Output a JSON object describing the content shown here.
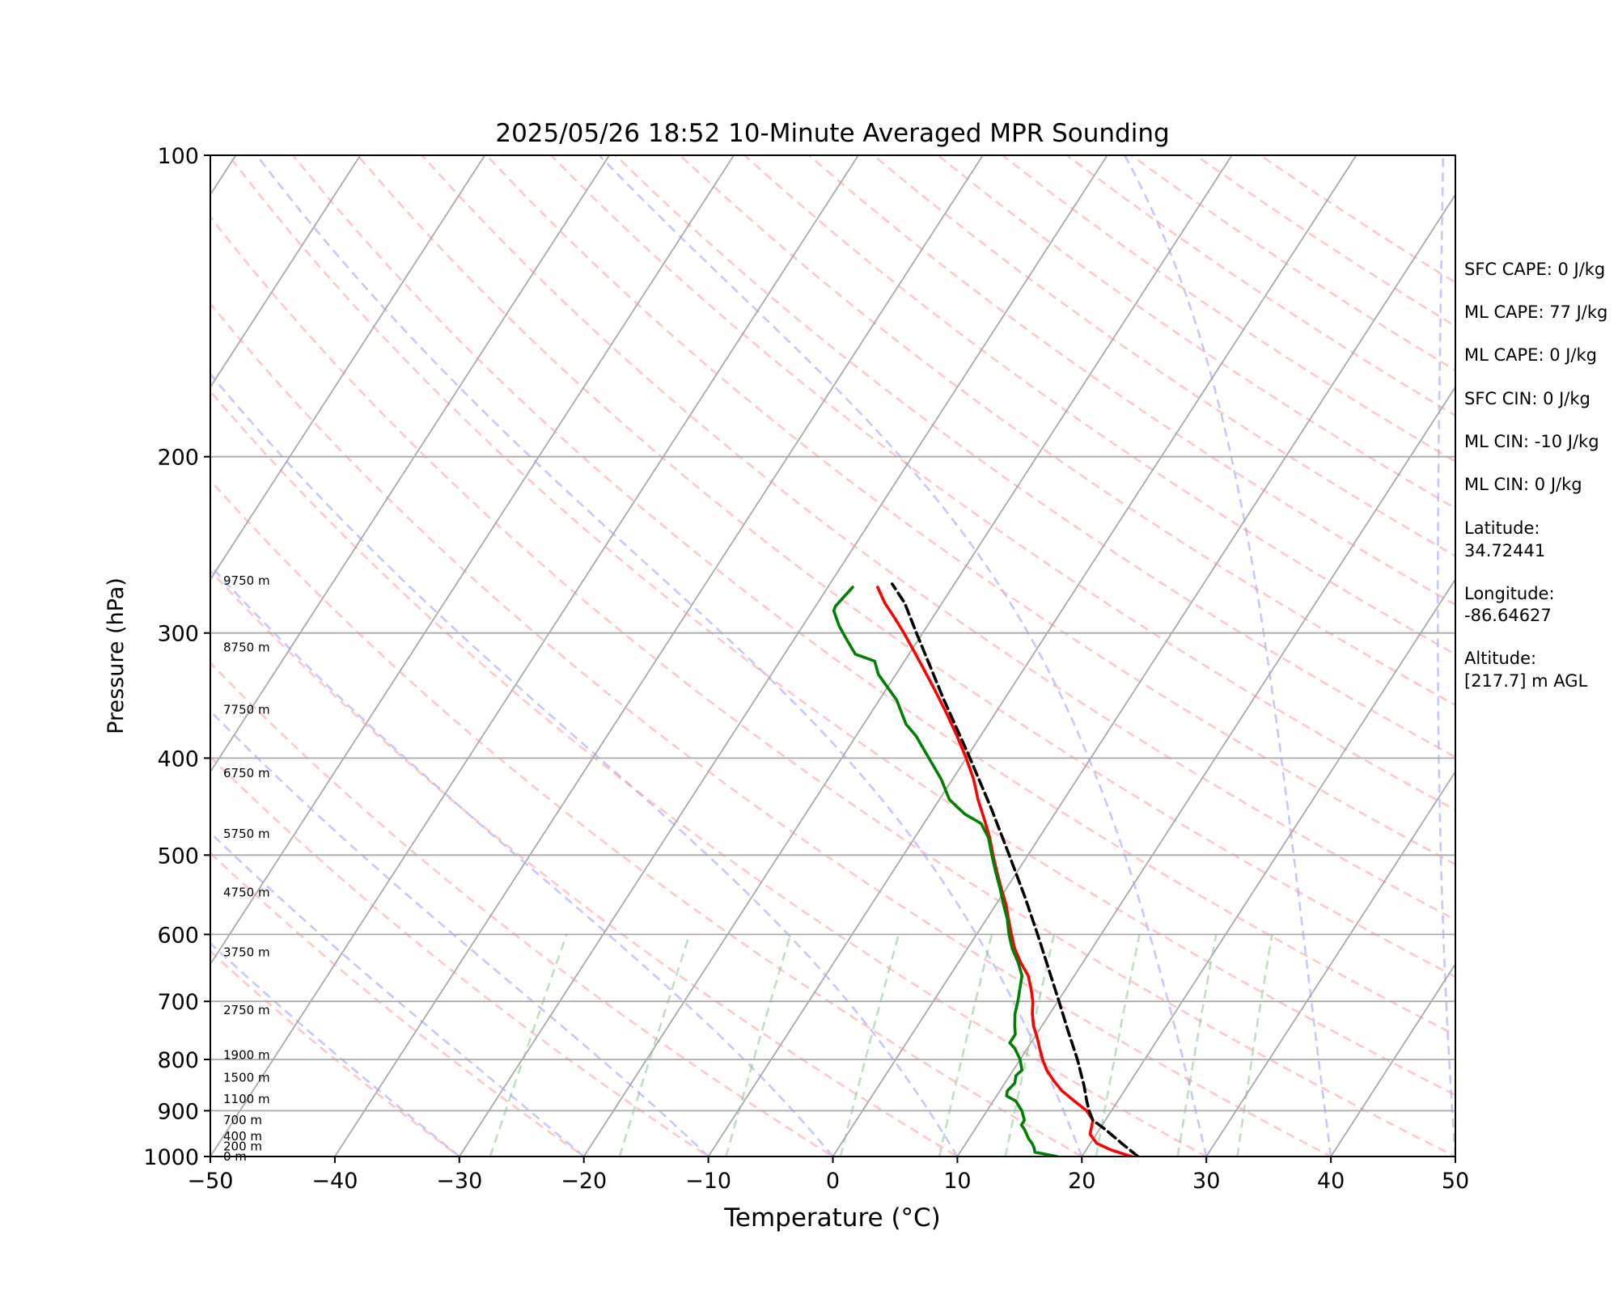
{
  "chart_data": {
    "type": "line",
    "title": "2025/05/26 18:52 10-Minute Averaged MPR Sounding",
    "xlabel": "Temperature (°C)",
    "ylabel": "Pressure (hPa)",
    "xlim": [
      -50,
      50
    ],
    "ylim": [
      1000,
      100
    ],
    "y_scale": "log",
    "x_ticks": [
      "−50",
      "−40",
      "−30",
      "−20",
      "−10",
      "0",
      "10",
      "20",
      "30",
      "40",
      "50"
    ],
    "x_tick_values": [
      -50,
      -40,
      -30,
      -20,
      -10,
      0,
      10,
      20,
      30,
      40,
      50
    ],
    "y_ticks": [
      "100",
      "200",
      "300",
      "400",
      "500",
      "600",
      "700",
      "800",
      "900",
      "1000"
    ],
    "y_tick_values": [
      100,
      200,
      300,
      400,
      500,
      600,
      700,
      800,
      900,
      1000
    ],
    "grid": true,
    "height_labels": [
      {
        "p": 1000,
        "text": "0 m"
      },
      {
        "p": 977,
        "text": "200 m"
      },
      {
        "p": 955,
        "text": "400 m"
      },
      {
        "p": 920,
        "text": "700 m"
      },
      {
        "p": 876,
        "text": "1100 m"
      },
      {
        "p": 834,
        "text": "1500 m"
      },
      {
        "p": 792,
        "text": "1900 m"
      },
      {
        "p": 714,
        "text": "2750 m"
      },
      {
        "p": 625,
        "text": "3750 m"
      },
      {
        "p": 545,
        "text": "4750 m"
      },
      {
        "p": 476,
        "text": "5750 m"
      },
      {
        "p": 414,
        "text": "6750 m"
      },
      {
        "p": 358,
        "text": "7750 m"
      },
      {
        "p": 310,
        "text": "8750 m"
      },
      {
        "p": 266,
        "text": "9750 m"
      }
    ],
    "series": [
      {
        "color": "#ff0000",
        "points": [
          [
            1000,
            24.0
          ],
          [
            985,
            22.0
          ],
          [
            970,
            20.5
          ],
          [
            950,
            19.5
          ],
          [
            920,
            19.0
          ],
          [
            900,
            18.0
          ],
          [
            880,
            16.5
          ],
          [
            860,
            15.0
          ],
          [
            840,
            13.8
          ],
          [
            820,
            12.7
          ],
          [
            800,
            11.8
          ],
          [
            780,
            11.0
          ],
          [
            760,
            10.2
          ],
          [
            740,
            9.3
          ],
          [
            720,
            8.6
          ],
          [
            700,
            8.0
          ],
          [
            680,
            7.2
          ],
          [
            660,
            6.3
          ],
          [
            640,
            5.0
          ],
          [
            620,
            3.8
          ],
          [
            600,
            2.8
          ],
          [
            580,
            1.8
          ],
          [
            560,
            0.8
          ],
          [
            540,
            -0.4
          ],
          [
            520,
            -1.6
          ],
          [
            500,
            -2.8
          ],
          [
            480,
            -4.0
          ],
          [
            460,
            -5.4
          ],
          [
            440,
            -6.9
          ],
          [
            420,
            -8.3
          ],
          [
            400,
            -10.0
          ],
          [
            380,
            -11.9
          ],
          [
            360,
            -14.0
          ],
          [
            340,
            -16.3
          ],
          [
            320,
            -18.8
          ],
          [
            300,
            -21.5
          ],
          [
            290,
            -23.0
          ],
          [
            280,
            -24.6
          ],
          [
            270,
            -26.0
          ]
        ]
      },
      {
        "color": "#008000",
        "points": [
          [
            1000,
            18.0
          ],
          [
            995,
            17.0
          ],
          [
            990,
            16.0
          ],
          [
            980,
            15.7
          ],
          [
            970,
            15.3
          ],
          [
            960,
            14.8
          ],
          [
            950,
            14.4
          ],
          [
            940,
            14.0
          ],
          [
            930,
            13.5
          ],
          [
            920,
            13.5
          ],
          [
            900,
            12.8
          ],
          [
            880,
            11.8
          ],
          [
            870,
            10.8
          ],
          [
            860,
            10.6
          ],
          [
            845,
            10.8
          ],
          [
            830,
            10.5
          ],
          [
            820,
            10.7
          ],
          [
            800,
            10.0
          ],
          [
            780,
            9.0
          ],
          [
            770,
            8.3
          ],
          [
            755,
            8.3
          ],
          [
            740,
            7.8
          ],
          [
            720,
            7.2
          ],
          [
            700,
            6.8
          ],
          [
            680,
            6.3
          ],
          [
            660,
            5.8
          ],
          [
            640,
            4.8
          ],
          [
            620,
            3.6
          ],
          [
            600,
            2.6
          ],
          [
            580,
            1.7
          ],
          [
            560,
            0.6
          ],
          [
            540,
            -0.5
          ],
          [
            520,
            -1.7
          ],
          [
            500,
            -2.9
          ],
          [
            480,
            -4.1
          ],
          [
            465,
            -5.4
          ],
          [
            455,
            -7.2
          ],
          [
            440,
            -9.2
          ],
          [
            420,
            -10.9
          ],
          [
            400,
            -13.0
          ],
          [
            380,
            -15.2
          ],
          [
            370,
            -16.6
          ],
          [
            350,
            -18.6
          ],
          [
            330,
            -21.4
          ],
          [
            320,
            -22.4
          ],
          [
            315,
            -24.3
          ],
          [
            305,
            -25.7
          ],
          [
            295,
            -27.1
          ],
          [
            285,
            -28.3
          ],
          [
            282,
            -28.4
          ],
          [
            270,
            -28.0
          ]
        ]
      },
      {
        "color": "#000000",
        "dashed": true,
        "points": [
          [
            1000,
            24.5
          ],
          [
            970,
            22.5
          ],
          [
            940,
            20.5
          ],
          [
            920,
            19.0
          ],
          [
            900,
            18.2
          ],
          [
            880,
            17.5
          ],
          [
            850,
            16.5
          ],
          [
            800,
            14.6
          ],
          [
            750,
            12.4
          ],
          [
            700,
            10.1
          ],
          [
            650,
            7.6
          ],
          [
            600,
            4.9
          ],
          [
            550,
            1.9
          ],
          [
            500,
            -1.5
          ],
          [
            450,
            -5.3
          ],
          [
            400,
            -9.7
          ],
          [
            350,
            -14.8
          ],
          [
            300,
            -20.5
          ],
          [
            280,
            -23.0
          ],
          [
            268,
            -25.0
          ]
        ]
      }
    ]
  },
  "info_panel": {
    "sfc_cape": "SFC CAPE: 0 J/kg",
    "ml_cape_1": "ML CAPE: 77 J/kg",
    "ml_cape_2": "ML CAPE: 0 J/kg",
    "sfc_cin": "SFC CIN: 0 J/kg",
    "ml_cin_1": "ML CIN: -10 J/kg",
    "ml_cin_2": "ML CIN: 0 J/kg",
    "latitude_label": "Latitude:",
    "latitude_value": "34.72441",
    "longitude_label": "Longitude:",
    "longitude_value": "-86.64627",
    "altitude_label": "Altitude:",
    "altitude_value": "[217.7] m AGL"
  }
}
